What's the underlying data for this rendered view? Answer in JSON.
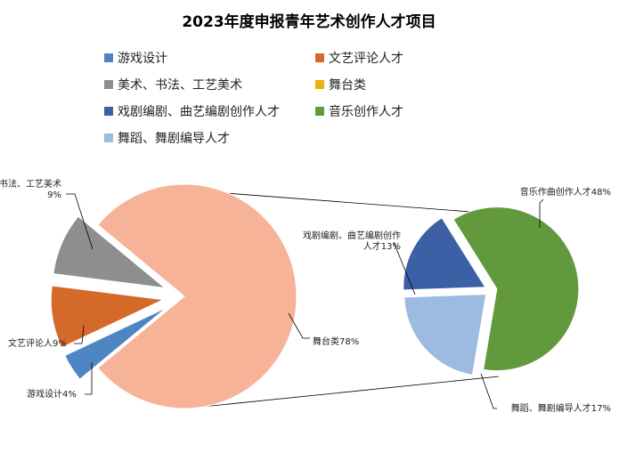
{
  "chart_data": {
    "type": "pie",
    "subtype": "pie-of-pie",
    "title": "2023年度申报青年艺术创作人才项目",
    "legend_position": "top",
    "legend": [
      {
        "label": "游戏设计",
        "color": "#4e86c4"
      },
      {
        "label": "文艺评论人才",
        "color": "#d5692a"
      },
      {
        "label": "美术、书法、工艺美术",
        "color": "#8e8e8e"
      },
      {
        "label": "舞台类",
        "color": "#e9b30c"
      },
      {
        "label": "戏剧编剧、曲艺编剧创作人才",
        "color": "#3d5fa6"
      },
      {
        "label": "音乐创作人才",
        "color": "#63993d"
      },
      {
        "label": "舞蹈、舞剧编导人才",
        "color": "#9dbae0"
      }
    ],
    "main_pie": [
      {
        "label": "舞台类",
        "data_label": "舞台类78%",
        "value": 78,
        "color": "#f6b398"
      },
      {
        "label": "游戏设计",
        "data_label": "游戏设计4%",
        "value": 4,
        "color": "#4e86c4"
      },
      {
        "label": "文艺评论人才",
        "data_label": "文艺评论人9%",
        "value": 9,
        "color": "#d5692a"
      },
      {
        "label": "美术、书法、工艺美术",
        "data_label": [
          "美术、书法、工艺美术",
          "9%"
        ],
        "value": 9,
        "color": "#8e8e8e"
      }
    ],
    "secondary_pie": [
      {
        "label": "音乐作曲创作人才",
        "data_label": "音乐作曲创作人才48%",
        "value": 48,
        "color": "#63993d"
      },
      {
        "label": "舞蹈、舞剧编导人才",
        "data_label": "舞蹈、舞剧编导人才17%",
        "value": 17,
        "color": "#9dbae0"
      },
      {
        "label": "戏剧编剧、曲艺编剧创作人才",
        "data_label": [
          "戏剧编剧、曲艺编剧创作",
          "人才13%"
        ],
        "value": 13,
        "color": "#3d5fa6"
      }
    ]
  }
}
